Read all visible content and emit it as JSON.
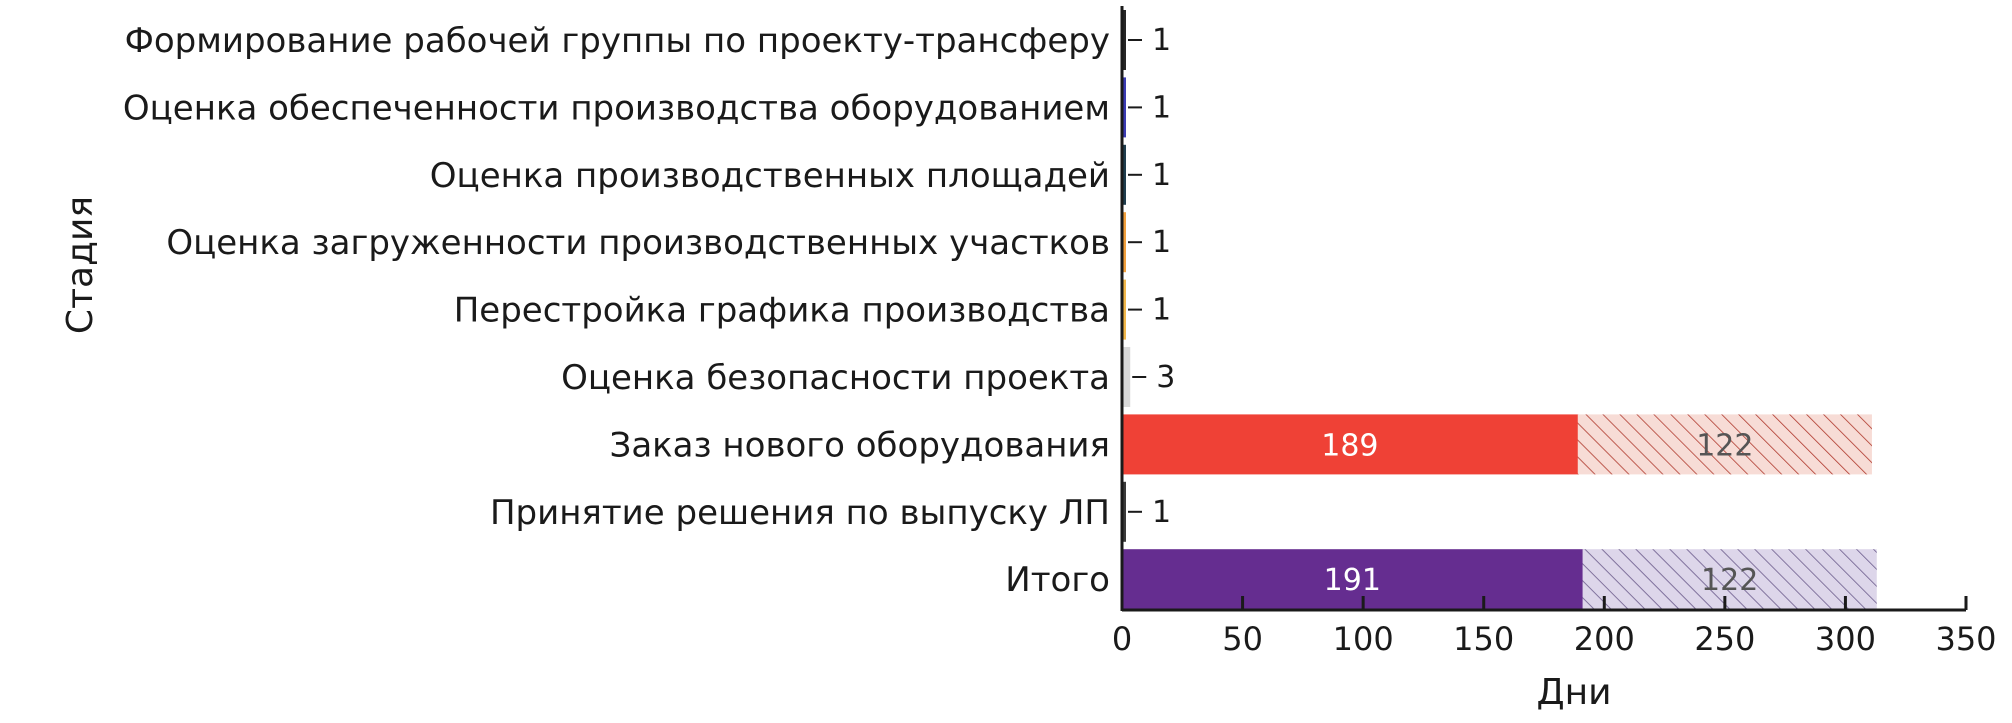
{
  "chart_data": {
    "type": "bar",
    "orientation": "horizontal",
    "stacked": true,
    "xlabel": "Дни",
    "ylabel": "Стадия",
    "xlim": [
      0,
      350
    ],
    "xticks": [
      0,
      50,
      100,
      150,
      200,
      250,
      300,
      350
    ],
    "grid": false,
    "categories": [
      "Формирование рабочей группы по проекту-трансферу",
      "Оценка обеспеченности производства оборудованием",
      "Оценка производственных площадей",
      "Оценка загруженности производственных участков",
      "Перестройка графика производства",
      "Оценка безопасности проекта",
      "Заказ нового оборудования",
      "Принятие решения по выпуску ЛП",
      "Итого"
    ],
    "values": [
      1,
      1,
      1,
      1,
      1,
      3,
      189,
      1,
      191
    ],
    "extra_values": [
      null,
      null,
      null,
      null,
      null,
      null,
      122,
      null,
      122
    ],
    "value_labels": [
      "1",
      "1",
      "1",
      "1",
      "1",
      "3",
      "189",
      "1",
      "191"
    ],
    "extra_labels": [
      "",
      "",
      "",
      "",
      "",
      "",
      "122",
      "",
      "122"
    ],
    "colors": [
      "#262626",
      "#3b3bb3",
      "#1f3d4d",
      "#f2a03d",
      "#f2b84b",
      "#d9d9d9",
      "#ef4136",
      "#3a3a3a",
      "#652d90"
    ],
    "extra_fill_colors": [
      null,
      null,
      null,
      null,
      null,
      null,
      "#f7dcd6",
      null,
      "#ddd6ea"
    ],
    "extra_hatch_colors": [
      null,
      null,
      null,
      null,
      null,
      null,
      "#b03a2e",
      null,
      "#6a5a8a"
    ],
    "inside_label_color": "#ffffff",
    "extra_label_color": "#555555"
  }
}
